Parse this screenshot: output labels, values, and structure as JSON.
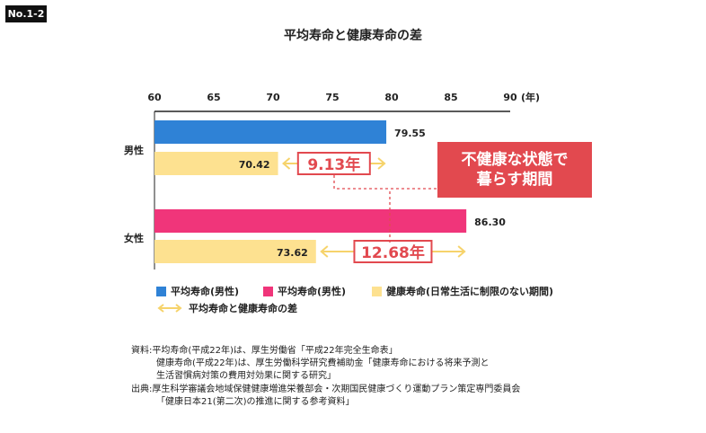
{
  "badge": "No.1-2",
  "colors": {
    "male": "#2f82d6",
    "female": "#f0357a",
    "healthy": "#fde190",
    "diff": "#e2494f",
    "arrow": "#f6d36b"
  },
  "chart_data": {
    "type": "bar",
    "orientation": "horizontal",
    "title": "平均寿命と健康寿命の差",
    "xlim": [
      60,
      90
    ],
    "ticks": [
      "60",
      "65",
      "70",
      "75",
      "80",
      "85",
      "90"
    ],
    "unit": "(年)",
    "categories": [
      "男性",
      "女性"
    ],
    "series": [
      {
        "name": "平均寿命(男性)",
        "values": [
          79.55,
          86.3
        ],
        "labels": [
          "79.55",
          "86.30"
        ]
      },
      {
        "name": "健康寿命",
        "values": [
          70.42,
          73.62
        ],
        "labels": [
          "70.42",
          "73.62"
        ]
      }
    ],
    "differences": [
      {
        "category": "男性",
        "value": 9.13,
        "label": "9.13年"
      },
      {
        "category": "女性",
        "value": 12.68,
        "label": "12.68年"
      }
    ],
    "callout": [
      "不健康な状態で",
      "暮らす期間"
    ]
  },
  "legend": {
    "item1": "平均寿命(男性)",
    "item2": "平均寿命(男性)",
    "item3": "健康寿命(日常生活に制限のない期間)",
    "item4": "平均寿命と健康寿命の差"
  },
  "source": {
    "line1": "資料:平均寿命(平成22年)は、厚生労働省「平成22年完全生命表」",
    "line2": "健康寿命(平成22年)は、厚生労働科学研究費補助金「健康寿命における将来予測と",
    "line3": "生活習慣病対策の費用対効果に関する研究」",
    "line4": "出典:厚生科学審議会地域保健健康増進栄養部会・次期国民健康づくり運動プラン策定専門委員会",
    "line5": "「健康日本21(第二次)の推進に関する参考資料」"
  }
}
